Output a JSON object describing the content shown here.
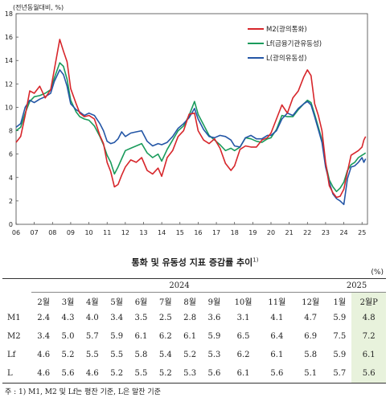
{
  "chart_data": {
    "type": "line",
    "unit_label": "(전년동월대비, %)",
    "ylim": [
      0,
      18
    ],
    "y_ticks": [
      "0",
      "2",
      "4",
      "6",
      "8",
      "10",
      "12",
      "14",
      "16",
      "18"
    ],
    "x_ticks": [
      "06",
      "07",
      "08",
      "09",
      "10",
      "11",
      "12",
      "13",
      "14",
      "15",
      "16",
      "17",
      "18",
      "19",
      "20",
      "21",
      "22",
      "23",
      "24",
      "25"
    ],
    "legend_placement": "top-right",
    "series": [
      {
        "name": "M2(광의통화)",
        "color": "#d7262b",
        "points": [
          [
            2006.0,
            7.0
          ],
          [
            2006.25,
            7.5
          ],
          [
            2006.5,
            9.3
          ],
          [
            2006.75,
            11.4
          ],
          [
            2007.0,
            11.2
          ],
          [
            2007.3,
            11.8
          ],
          [
            2007.6,
            10.8
          ],
          [
            2007.9,
            11.5
          ],
          [
            2008.1,
            13.2
          ],
          [
            2008.4,
            15.8
          ],
          [
            2008.6,
            14.8
          ],
          [
            2008.8,
            13.9
          ],
          [
            2009.0,
            11.6
          ],
          [
            2009.3,
            10.3
          ],
          [
            2009.5,
            9.5
          ],
          [
            2009.75,
            9.2
          ],
          [
            2010.0,
            9.3
          ],
          [
            2010.3,
            9.0
          ],
          [
            2010.6,
            7.6
          ],
          [
            2010.8,
            6.9
          ],
          [
            2011.0,
            5.3
          ],
          [
            2011.2,
            4.5
          ],
          [
            2011.4,
            3.2
          ],
          [
            2011.6,
            3.4
          ],
          [
            2011.8,
            4.2
          ],
          [
            2012.0,
            4.9
          ],
          [
            2012.3,
            5.5
          ],
          [
            2012.6,
            5.3
          ],
          [
            2012.9,
            5.7
          ],
          [
            2013.2,
            4.6
          ],
          [
            2013.5,
            4.3
          ],
          [
            2013.8,
            4.8
          ],
          [
            2014.0,
            4.1
          ],
          [
            2014.3,
            5.7
          ],
          [
            2014.6,
            6.3
          ],
          [
            2014.9,
            7.5
          ],
          [
            2015.2,
            8.0
          ],
          [
            2015.5,
            9.4
          ],
          [
            2015.8,
            9.5
          ],
          [
            2016.0,
            8.0
          ],
          [
            2016.3,
            7.2
          ],
          [
            2016.6,
            6.9
          ],
          [
            2016.9,
            7.3
          ],
          [
            2017.2,
            6.5
          ],
          [
            2017.5,
            5.2
          ],
          [
            2017.8,
            4.6
          ],
          [
            2018.0,
            5.0
          ],
          [
            2018.3,
            6.4
          ],
          [
            2018.6,
            6.7
          ],
          [
            2018.9,
            6.6
          ],
          [
            2019.2,
            6.6
          ],
          [
            2019.5,
            7.2
          ],
          [
            2019.8,
            7.4
          ],
          [
            2020.0,
            7.8
          ],
          [
            2020.3,
            9.0
          ],
          [
            2020.6,
            10.2
          ],
          [
            2020.9,
            9.5
          ],
          [
            2021.2,
            10.8
          ],
          [
            2021.5,
            11.4
          ],
          [
            2021.8,
            12.6
          ],
          [
            2022.0,
            13.2
          ],
          [
            2022.2,
            12.7
          ],
          [
            2022.4,
            10.3
          ],
          [
            2022.6,
            9.3
          ],
          [
            2022.8,
            8.0
          ],
          [
            2023.0,
            5.3
          ],
          [
            2023.2,
            3.3
          ],
          [
            2023.4,
            2.7
          ],
          [
            2023.6,
            2.3
          ],
          [
            2023.8,
            2.4
          ],
          [
            2024.0,
            3.0
          ],
          [
            2024.2,
            4.5
          ],
          [
            2024.4,
            5.9
          ],
          [
            2024.6,
            6.1
          ],
          [
            2024.8,
            6.3
          ],
          [
            2025.0,
            6.6
          ],
          [
            2025.1,
            7.2
          ],
          [
            2025.2,
            7.5
          ]
        ]
      },
      {
        "name": "Lf(금융기관유동성)",
        "color": "#1a9b5c",
        "points": [
          [
            2006.0,
            8.0
          ],
          [
            2006.25,
            8.3
          ],
          [
            2006.5,
            9.5
          ],
          [
            2006.75,
            10.5
          ],
          [
            2007.0,
            10.9
          ],
          [
            2007.3,
            11.0
          ],
          [
            2007.6,
            11.2
          ],
          [
            2007.9,
            11.5
          ],
          [
            2008.1,
            12.5
          ],
          [
            2008.4,
            13.8
          ],
          [
            2008.6,
            13.5
          ],
          [
            2008.8,
            12.4
          ],
          [
            2009.0,
            10.6
          ],
          [
            2009.3,
            9.6
          ],
          [
            2009.5,
            9.2
          ],
          [
            2009.75,
            9.0
          ],
          [
            2010.0,
            8.9
          ],
          [
            2010.3,
            8.4
          ],
          [
            2010.6,
            7.5
          ],
          [
            2010.8,
            6.8
          ],
          [
            2011.0,
            5.9
          ],
          [
            2011.2,
            5.3
          ],
          [
            2011.4,
            4.3
          ],
          [
            2011.6,
            4.9
          ],
          [
            2011.8,
            5.6
          ],
          [
            2012.0,
            6.3
          ],
          [
            2012.3,
            6.5
          ],
          [
            2012.6,
            6.7
          ],
          [
            2012.9,
            6.9
          ],
          [
            2013.2,
            6.1
          ],
          [
            2013.5,
            5.7
          ],
          [
            2013.8,
            6.0
          ],
          [
            2014.0,
            5.4
          ],
          [
            2014.3,
            6.4
          ],
          [
            2014.6,
            7.2
          ],
          [
            2014.9,
            8.0
          ],
          [
            2015.2,
            8.4
          ],
          [
            2015.5,
            9.3
          ],
          [
            2015.8,
            10.5
          ],
          [
            2016.0,
            9.4
          ],
          [
            2016.3,
            8.5
          ],
          [
            2016.6,
            7.6
          ],
          [
            2016.9,
            7.2
          ],
          [
            2017.2,
            6.8
          ],
          [
            2017.5,
            6.3
          ],
          [
            2017.8,
            6.5
          ],
          [
            2018.0,
            6.3
          ],
          [
            2018.3,
            6.6
          ],
          [
            2018.6,
            7.4
          ],
          [
            2018.9,
            7.3
          ],
          [
            2019.2,
            7.1
          ],
          [
            2019.5,
            7.0
          ],
          [
            2019.8,
            7.3
          ],
          [
            2020.0,
            7.4
          ],
          [
            2020.3,
            8.1
          ],
          [
            2020.6,
            9.3
          ],
          [
            2020.9,
            9.2
          ],
          [
            2021.2,
            9.2
          ],
          [
            2021.5,
            9.8
          ],
          [
            2021.8,
            10.3
          ],
          [
            2022.0,
            10.6
          ],
          [
            2022.2,
            10.4
          ],
          [
            2022.4,
            9.4
          ],
          [
            2022.6,
            8.3
          ],
          [
            2022.8,
            7.2
          ],
          [
            2023.0,
            5.2
          ],
          [
            2023.2,
            3.8
          ],
          [
            2023.4,
            3.2
          ],
          [
            2023.6,
            2.8
          ],
          [
            2023.8,
            3.1
          ],
          [
            2024.0,
            3.6
          ],
          [
            2024.2,
            4.6
          ],
          [
            2024.4,
            5.1
          ],
          [
            2024.6,
            5.3
          ],
          [
            2024.8,
            5.7
          ],
          [
            2025.0,
            5.9
          ],
          [
            2025.1,
            6.0
          ],
          [
            2025.2,
            6.1
          ]
        ]
      },
      {
        "name": "L(광의유동성)",
        "color": "#2456a6",
        "points": [
          [
            2006.0,
            8.3
          ],
          [
            2006.25,
            8.6
          ],
          [
            2006.5,
            10.0
          ],
          [
            2006.75,
            10.6
          ],
          [
            2007.0,
            10.4
          ],
          [
            2007.3,
            10.7
          ],
          [
            2007.6,
            10.9
          ],
          [
            2007.9,
            11.2
          ],
          [
            2008.1,
            12.2
          ],
          [
            2008.4,
            13.2
          ],
          [
            2008.6,
            12.8
          ],
          [
            2008.8,
            11.8
          ],
          [
            2009.0,
            10.3
          ],
          [
            2009.3,
            9.8
          ],
          [
            2009.5,
            9.6
          ],
          [
            2009.75,
            9.3
          ],
          [
            2010.0,
            9.5
          ],
          [
            2010.3,
            9.3
          ],
          [
            2010.6,
            8.6
          ],
          [
            2010.8,
            8.0
          ],
          [
            2011.0,
            7.1
          ],
          [
            2011.2,
            6.9
          ],
          [
            2011.4,
            7.0
          ],
          [
            2011.6,
            7.3
          ],
          [
            2011.8,
            7.9
          ],
          [
            2012.0,
            7.5
          ],
          [
            2012.3,
            7.8
          ],
          [
            2012.6,
            7.9
          ],
          [
            2012.9,
            8.0
          ],
          [
            2013.2,
            7.1
          ],
          [
            2013.5,
            6.7
          ],
          [
            2013.8,
            6.9
          ],
          [
            2014.0,
            6.8
          ],
          [
            2014.3,
            7.0
          ],
          [
            2014.6,
            7.5
          ],
          [
            2014.9,
            8.2
          ],
          [
            2015.2,
            8.6
          ],
          [
            2015.5,
            9.1
          ],
          [
            2015.8,
            9.9
          ],
          [
            2016.0,
            9.0
          ],
          [
            2016.3,
            8.1
          ],
          [
            2016.6,
            7.5
          ],
          [
            2016.9,
            7.4
          ],
          [
            2017.2,
            7.6
          ],
          [
            2017.5,
            7.5
          ],
          [
            2017.8,
            7.2
          ],
          [
            2018.0,
            6.7
          ],
          [
            2018.3,
            6.6
          ],
          [
            2018.6,
            7.4
          ],
          [
            2018.9,
            7.6
          ],
          [
            2019.2,
            7.3
          ],
          [
            2019.5,
            7.3
          ],
          [
            2019.8,
            7.6
          ],
          [
            2020.0,
            7.6
          ],
          [
            2020.3,
            8.0
          ],
          [
            2020.6,
            9.0
          ],
          [
            2020.9,
            9.5
          ],
          [
            2021.2,
            9.3
          ],
          [
            2021.5,
            9.9
          ],
          [
            2021.8,
            10.3
          ],
          [
            2022.0,
            10.5
          ],
          [
            2022.2,
            10.2
          ],
          [
            2022.4,
            9.2
          ],
          [
            2022.6,
            8.1
          ],
          [
            2022.8,
            7.0
          ],
          [
            2023.0,
            4.9
          ],
          [
            2023.2,
            3.6
          ],
          [
            2023.4,
            2.6
          ],
          [
            2023.6,
            2.2
          ],
          [
            2023.8,
            2.0
          ],
          [
            2024.0,
            1.7
          ],
          [
            2024.2,
            3.9
          ],
          [
            2024.4,
            4.9
          ],
          [
            2024.6,
            5.0
          ],
          [
            2024.8,
            5.3
          ],
          [
            2025.0,
            5.7
          ],
          [
            2025.1,
            5.3
          ],
          [
            2025.2,
            5.6
          ]
        ]
      }
    ]
  },
  "table": {
    "title": "통화 및 유동성 지표 증감률 추이",
    "title_note": "1)",
    "unit": "(%)",
    "year_a": "2024",
    "year_b": "2025",
    "months_a": [
      "2월",
      "3월",
      "4월",
      "5월",
      "6월",
      "7월",
      "8월",
      "9월",
      "10월",
      "11월",
      "12월"
    ],
    "months_b": [
      "1월",
      "2월P"
    ],
    "rows": [
      {
        "label": "M1",
        "values": [
          "2.4",
          "4.3",
          "4.0",
          "3.4",
          "3.5",
          "2.5",
          "2.8",
          "3.6",
          "3.1",
          "4.1",
          "4.7",
          "5.9",
          "4.8"
        ]
      },
      {
        "label": "M2",
        "values": [
          "3.4",
          "5.0",
          "5.7",
          "5.9",
          "6.1",
          "6.2",
          "6.1",
          "5.9",
          "6.5",
          "6.4",
          "6.9",
          "7.5",
          "7.2"
        ]
      },
      {
        "label": "Lf",
        "values": [
          "4.6",
          "5.2",
          "5.5",
          "5.5",
          "5.8",
          "5.4",
          "5.2",
          "5.3",
          "6.2",
          "6.1",
          "5.8",
          "5.9",
          "6.1"
        ]
      },
      {
        "label": "L",
        "values": [
          "4.6",
          "5.6",
          "4.6",
          "5.2",
          "5.5",
          "5.2",
          "5.3",
          "5.6",
          "6.1",
          "5.6",
          "5.1",
          "5.7",
          "5.6"
        ]
      }
    ],
    "highlight_color": "#e8f2dc"
  },
  "footnote": "주 : 1) M1, M2 및 Lf는 평잔 기준, L은 말잔 기준"
}
